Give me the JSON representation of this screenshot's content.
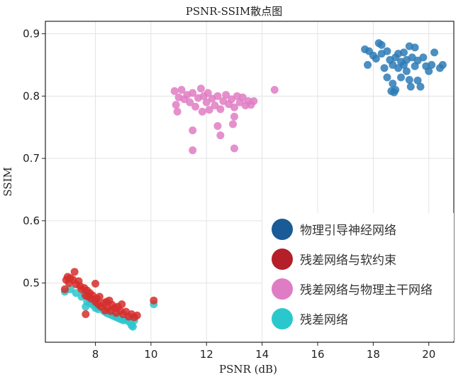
{
  "chart_data": {
    "type": "scatter",
    "title": "PSNR-SSIM散点图",
    "xlabel": "PSNR (dB)",
    "ylabel": "SSIM",
    "xlim": [
      6.2,
      20.9
    ],
    "ylim": [
      0.405,
      0.92
    ],
    "xticks": [
      8,
      10,
      12,
      14,
      16,
      18,
      20
    ],
    "yticks": [
      0.5,
      0.6,
      0.7,
      0.8,
      0.9
    ],
    "ytick_labels": [
      "0.5",
      "0.6",
      "0.7",
      "0.8",
      "0.9"
    ],
    "grid": true,
    "legend_position": "bottom-right",
    "series": [
      {
        "name": "残差网络",
        "color": "#2cc6cc",
        "legend_color": "#2ac8cc",
        "points": [
          [
            6.9,
            0.486
          ],
          [
            7.1,
            0.49
          ],
          [
            7.3,
            0.484
          ],
          [
            7.5,
            0.478
          ],
          [
            7.6,
            0.482
          ],
          [
            7.7,
            0.47
          ],
          [
            7.8,
            0.468
          ],
          [
            7.9,
            0.465
          ],
          [
            8.0,
            0.46
          ],
          [
            8.1,
            0.458
          ],
          [
            8.2,
            0.462
          ],
          [
            8.3,
            0.455
          ],
          [
            8.4,
            0.452
          ],
          [
            8.5,
            0.45
          ],
          [
            8.6,
            0.448
          ],
          [
            8.7,
            0.446
          ],
          [
            8.8,
            0.444
          ],
          [
            8.9,
            0.442
          ],
          [
            9.0,
            0.44
          ],
          [
            9.1,
            0.441
          ],
          [
            9.2,
            0.438
          ],
          [
            9.3,
            0.432
          ],
          [
            9.35,
            0.43
          ],
          [
            9.4,
            0.44
          ],
          [
            10.1,
            0.466
          ],
          [
            7.65,
            0.462
          ]
        ]
      },
      {
        "name": "残差网络与软约束",
        "color": "#d62e2c",
        "legend_color": "#b51f2a",
        "points": [
          [
            6.9,
            0.49
          ],
          [
            6.95,
            0.505
          ],
          [
            7.0,
            0.51
          ],
          [
            7.05,
            0.5
          ],
          [
            7.1,
            0.508
          ],
          [
            7.2,
            0.505
          ],
          [
            7.25,
            0.518
          ],
          [
            7.3,
            0.498
          ],
          [
            7.4,
            0.503
          ],
          [
            7.45,
            0.495
          ],
          [
            7.5,
            0.49
          ],
          [
            7.6,
            0.492
          ],
          [
            7.65,
            0.48
          ],
          [
            7.7,
            0.488
          ],
          [
            7.75,
            0.478
          ],
          [
            7.8,
            0.484
          ],
          [
            7.85,
            0.475
          ],
          [
            7.9,
            0.48
          ],
          [
            8.0,
            0.499
          ],
          [
            8.0,
            0.47
          ],
          [
            8.05,
            0.475
          ],
          [
            8.1,
            0.466
          ],
          [
            8.15,
            0.478
          ],
          [
            8.2,
            0.462
          ],
          [
            8.3,
            0.468
          ],
          [
            8.35,
            0.456
          ],
          [
            8.4,
            0.47
          ],
          [
            8.45,
            0.46
          ],
          [
            8.5,
            0.472
          ],
          [
            8.55,
            0.455
          ],
          [
            8.6,
            0.465
          ],
          [
            8.7,
            0.46
          ],
          [
            8.75,
            0.452
          ],
          [
            8.8,
            0.462
          ],
          [
            8.9,
            0.455
          ],
          [
            8.95,
            0.466
          ],
          [
            9.0,
            0.45
          ],
          [
            9.1,
            0.454
          ],
          [
            9.2,
            0.446
          ],
          [
            9.3,
            0.45
          ],
          [
            9.4,
            0.445
          ],
          [
            9.5,
            0.448
          ],
          [
            7.65,
            0.45
          ],
          [
            10.1,
            0.472
          ]
        ]
      },
      {
        "name": "残差网络与物理主干网络",
        "color": "#e07cc3",
        "legend_color": "#e07cc3",
        "points": [
          [
            10.85,
            0.808
          ],
          [
            10.9,
            0.786
          ],
          [
            10.95,
            0.775
          ],
          [
            11.0,
            0.798
          ],
          [
            11.1,
            0.81
          ],
          [
            11.2,
            0.795
          ],
          [
            11.3,
            0.802
          ],
          [
            11.4,
            0.79
          ],
          [
            11.5,
            0.805
          ],
          [
            11.6,
            0.783
          ],
          [
            11.7,
            0.797
          ],
          [
            11.8,
            0.812
          ],
          [
            11.85,
            0.775
          ],
          [
            11.9,
            0.8
          ],
          [
            12.0,
            0.79
          ],
          [
            12.05,
            0.805
          ],
          [
            12.1,
            0.778
          ],
          [
            12.2,
            0.796
          ],
          [
            12.3,
            0.785
          ],
          [
            12.4,
            0.8
          ],
          [
            12.5,
            0.779
          ],
          [
            12.6,
            0.792
          ],
          [
            12.7,
            0.802
          ],
          [
            12.8,
            0.787
          ],
          [
            12.9,
            0.795
          ],
          [
            13.0,
            0.782
          ],
          [
            13.1,
            0.8
          ],
          [
            13.2,
            0.79
          ],
          [
            13.3,
            0.798
          ],
          [
            13.4,
            0.785
          ],
          [
            13.5,
            0.792
          ],
          [
            13.6,
            0.786
          ],
          [
            13.7,
            0.792
          ],
          [
            11.5,
            0.745
          ],
          [
            11.5,
            0.713
          ],
          [
            12.4,
            0.752
          ],
          [
            12.5,
            0.737
          ],
          [
            12.95,
            0.755
          ],
          [
            13.0,
            0.767
          ],
          [
            13.0,
            0.716
          ],
          [
            14.45,
            0.81
          ]
        ]
      },
      {
        "name": "物理引导神经网络",
        "color": "#2e7bb6",
        "legend_color": "#1a5a96",
        "points": [
          [
            17.7,
            0.875
          ],
          [
            17.8,
            0.85
          ],
          [
            17.85,
            0.872
          ],
          [
            18.0,
            0.865
          ],
          [
            18.1,
            0.86
          ],
          [
            18.2,
            0.885
          ],
          [
            18.3,
            0.882
          ],
          [
            18.3,
            0.868
          ],
          [
            18.4,
            0.845
          ],
          [
            18.5,
            0.872
          ],
          [
            18.5,
            0.83
          ],
          [
            18.6,
            0.858
          ],
          [
            18.7,
            0.85
          ],
          [
            18.7,
            0.82
          ],
          [
            18.75,
            0.806
          ],
          [
            18.8,
            0.81
          ],
          [
            18.8,
            0.862
          ],
          [
            18.9,
            0.845
          ],
          [
            18.9,
            0.868
          ],
          [
            19.0,
            0.855
          ],
          [
            19.0,
            0.83
          ],
          [
            19.1,
            0.85
          ],
          [
            19.1,
            0.87
          ],
          [
            19.2,
            0.84
          ],
          [
            19.2,
            0.858
          ],
          [
            19.3,
            0.88
          ],
          [
            19.3,
            0.826
          ],
          [
            19.35,
            0.815
          ],
          [
            19.4,
            0.862
          ],
          [
            19.5,
            0.878
          ],
          [
            19.5,
            0.848
          ],
          [
            19.6,
            0.857
          ],
          [
            19.6,
            0.825
          ],
          [
            19.7,
            0.815
          ],
          [
            19.8,
            0.862
          ],
          [
            19.9,
            0.848
          ],
          [
            20.0,
            0.84
          ],
          [
            20.1,
            0.85
          ],
          [
            20.2,
            0.87
          ],
          [
            20.4,
            0.845
          ],
          [
            20.5,
            0.85
          ],
          [
            18.65,
            0.808
          ]
        ]
      }
    ]
  }
}
